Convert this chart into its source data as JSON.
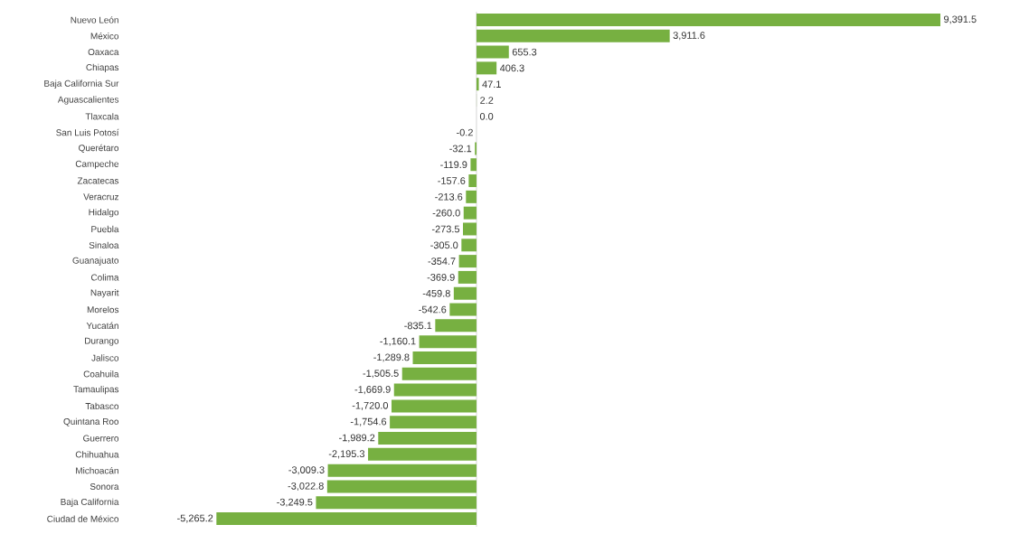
{
  "chart_data": {
    "type": "bar",
    "orientation": "horizontal",
    "color": "#77b041",
    "categories": [
      "Nuevo León",
      "México",
      "Oaxaca",
      "Chiapas",
      "Baja California Sur",
      "Aguascalientes",
      "Tlaxcala",
      "San Luis Potosí",
      "Querétaro",
      "Campeche",
      "Zacatecas",
      "Veracruz",
      "Hidalgo",
      "Puebla",
      "Sinaloa",
      "Guanajuato",
      "Colima",
      "Nayarit",
      "Morelos",
      "Yucatán",
      "Durango",
      "Jalisco",
      "Coahuila",
      "Tamaulipas",
      "Tabasco",
      "Quintana Roo",
      "Guerrero",
      "Chihuahua",
      "Michoacán",
      "Sonora",
      "Baja California",
      "Ciudad de México"
    ],
    "values": [
      9391.5,
      3911.6,
      655.3,
      406.3,
      47.1,
      2.2,
      0.0,
      -0.2,
      -32.1,
      -119.9,
      -157.6,
      -213.6,
      -260.0,
      -273.5,
      -305.0,
      -354.7,
      -369.9,
      -459.8,
      -542.6,
      -835.1,
      -1160.1,
      -1289.8,
      -1505.5,
      -1669.9,
      -1720.0,
      -1754.6,
      -1989.2,
      -2195.3,
      -3009.3,
      -3022.8,
      -3249.5,
      -5265.2
    ],
    "value_labels": [
      "9,391.5",
      "3,911.6",
      "655.3",
      "406.3",
      "47.1",
      "2.2",
      "0.0",
      "-0.2",
      "-32.1",
      "-119.9",
      "-157.6",
      "-213.6",
      "-260.0",
      "-273.5",
      "-305.0",
      "-354.7",
      "-369.9",
      "-459.8",
      "-542.6",
      "-835.1",
      "-1,160.1",
      "-1,289.8",
      "-1,505.5",
      "-1,669.9",
      "-1,720.0",
      "-1,754.6",
      "-1,989.2",
      "-2,195.3",
      "-3,009.3",
      "-3,022.8",
      "-3,249.5",
      "-5,265.2"
    ]
  }
}
